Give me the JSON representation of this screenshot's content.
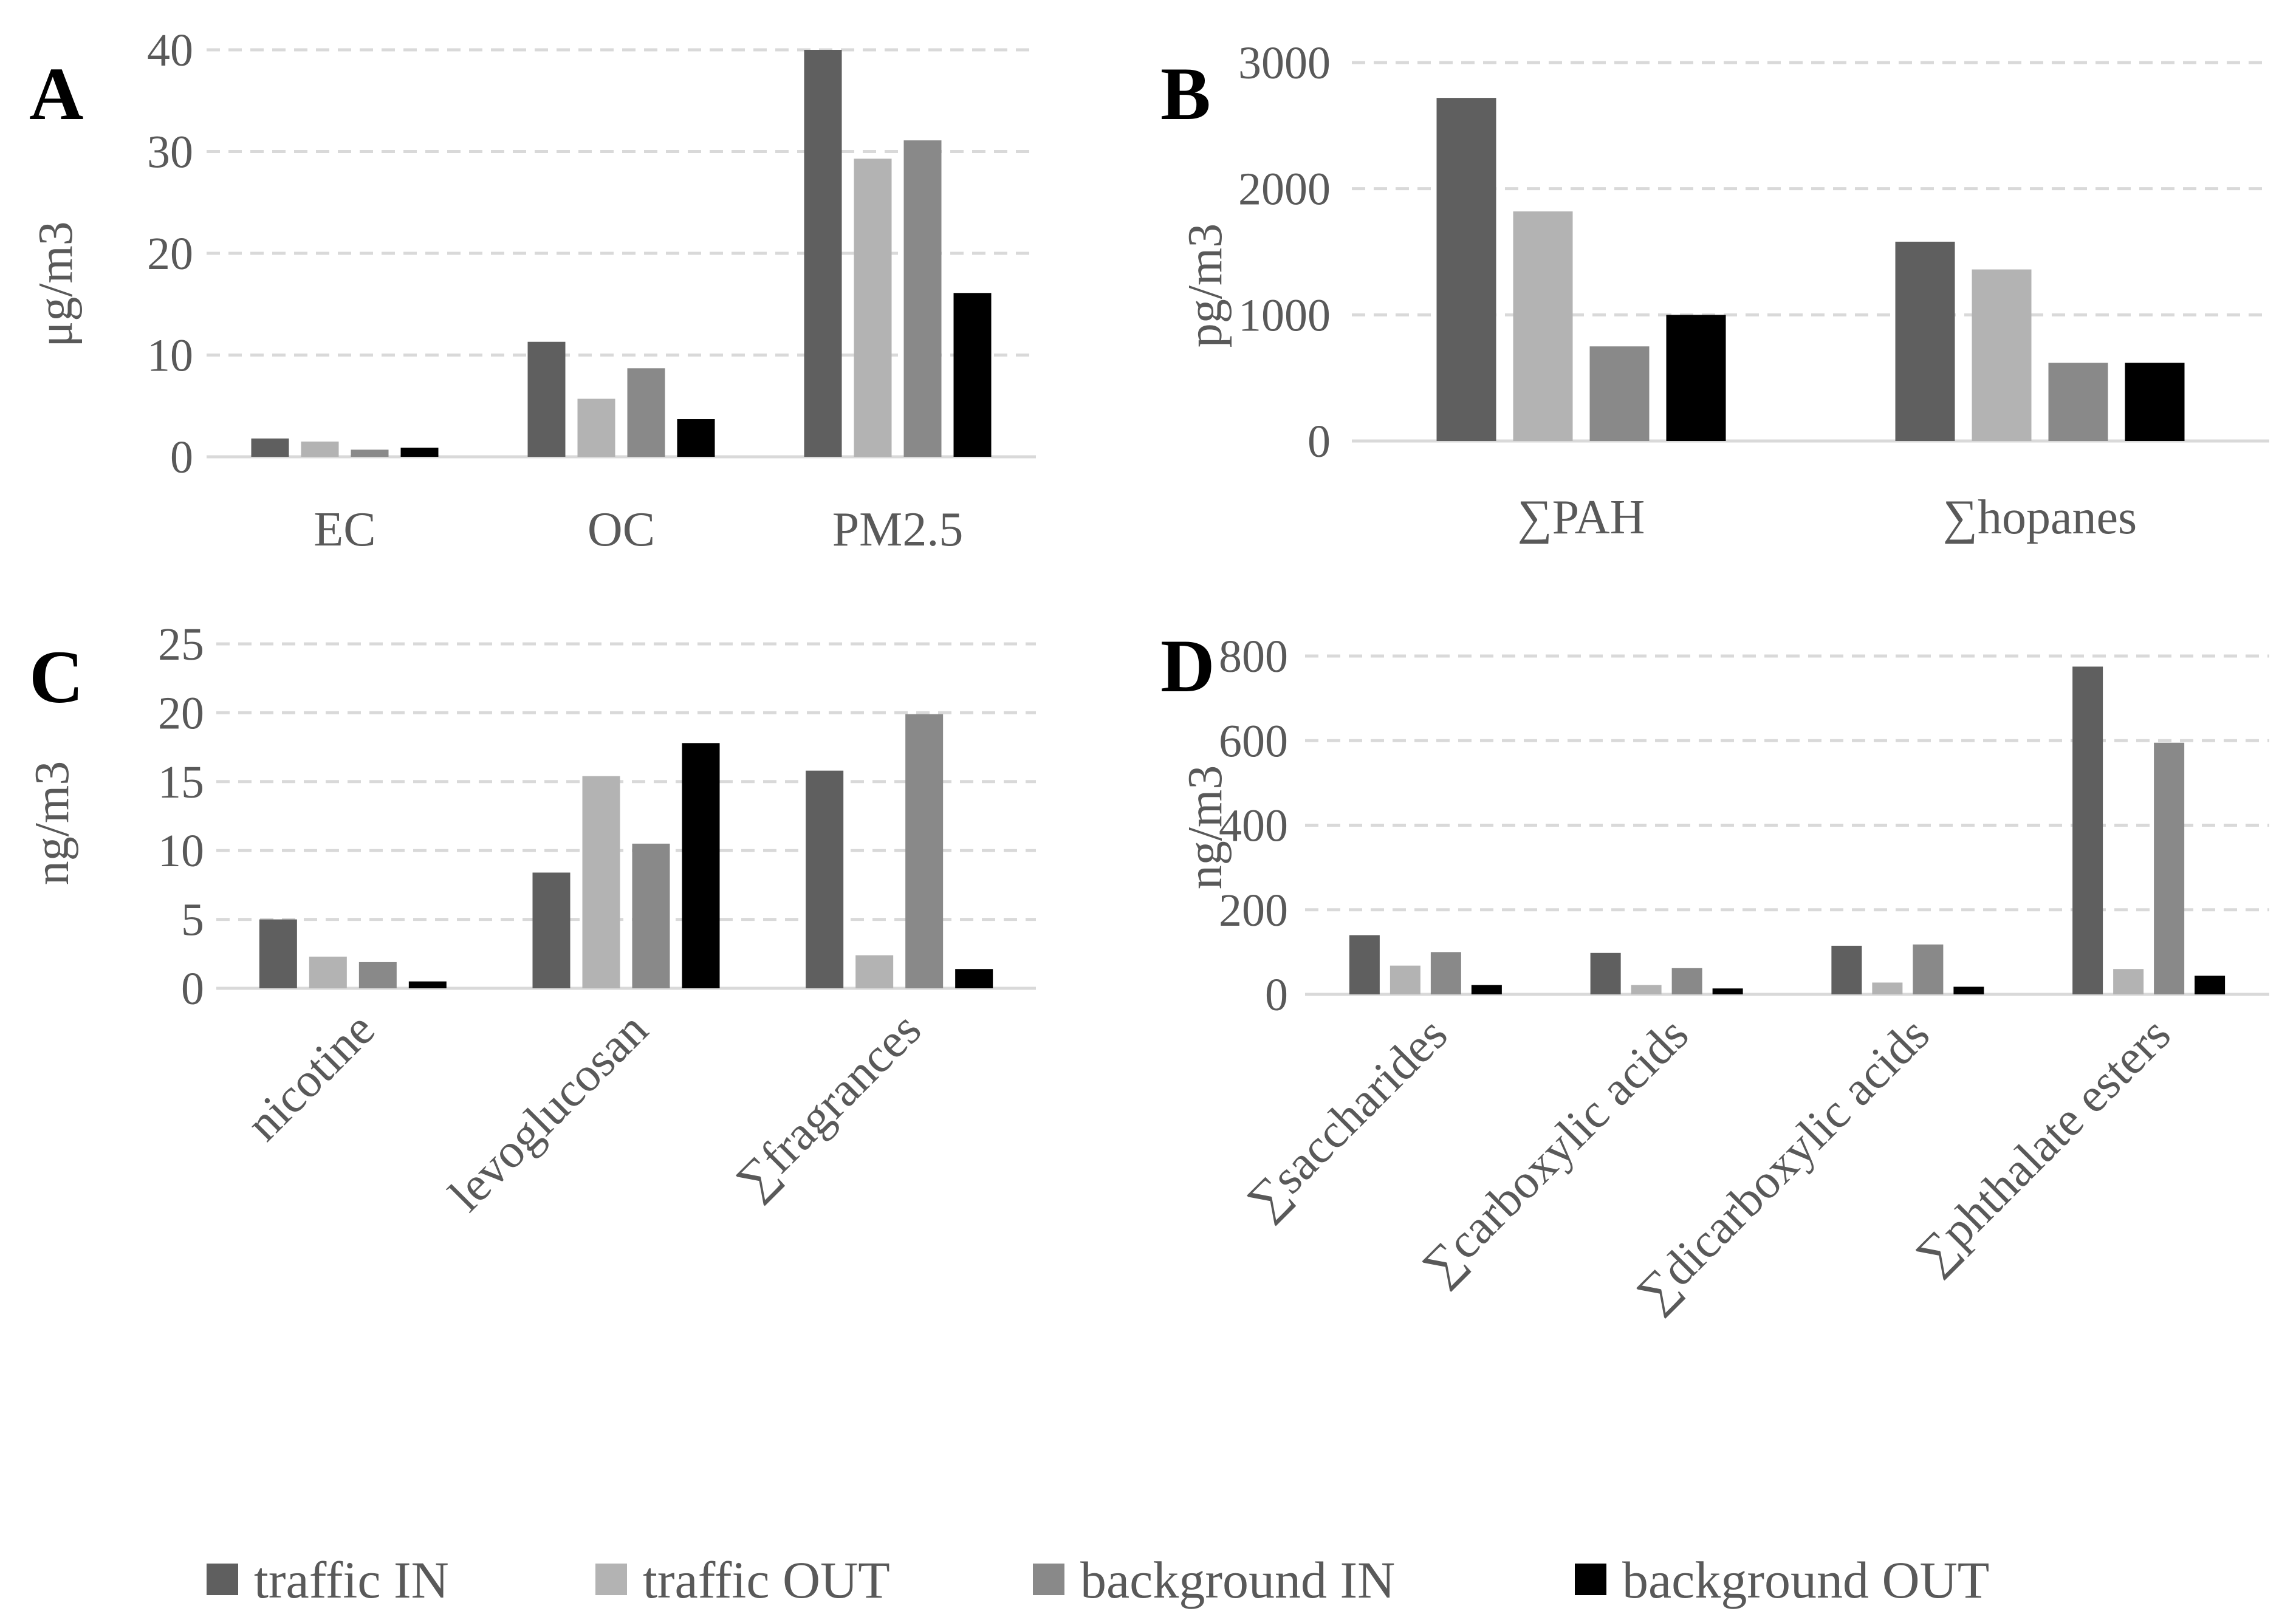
{
  "legend": [
    {
      "label": "traffic IN",
      "color": "#5f5f5f"
    },
    {
      "label": "traffic OUT",
      "color": "#b3b3b3"
    },
    {
      "label": "background IN",
      "color": "#898989"
    },
    {
      "label": "background OUT",
      "color": "#000000"
    }
  ],
  "chart_data": [
    {
      "panel": "A",
      "type": "bar",
      "ylabel": "μg/m3",
      "ylim": [
        0,
        40
      ],
      "yticks": [
        "0",
        "10",
        "20",
        "30",
        "40"
      ],
      "categories": [
        "EC",
        "OC",
        "PM2.5"
      ],
      "category_rotation": 0,
      "grid": true,
      "series": [
        {
          "name": "traffic IN",
          "values": [
            1.8,
            11.3,
            40
          ]
        },
        {
          "name": "traffic OUT",
          "values": [
            1.5,
            5.7,
            29.3
          ]
        },
        {
          "name": "background IN",
          "values": [
            0.7,
            8.7,
            31.1
          ]
        },
        {
          "name": "background OUT",
          "values": [
            0.9,
            3.7,
            16.1
          ]
        }
      ]
    },
    {
      "panel": "B",
      "type": "bar",
      "ylabel": "pg/m3",
      "ylim": [
        0,
        3000
      ],
      "yticks": [
        "0",
        "1000",
        "2000",
        "3000"
      ],
      "categories": [
        "∑PAH",
        "∑hopanes"
      ],
      "category_rotation": 0,
      "grid": true,
      "series": [
        {
          "name": "traffic IN",
          "values": [
            2720,
            1580
          ]
        },
        {
          "name": "traffic OUT",
          "values": [
            1820,
            1360
          ]
        },
        {
          "name": "background IN",
          "values": [
            750,
            620
          ]
        },
        {
          "name": "background OUT",
          "values": [
            1000,
            620
          ]
        }
      ]
    },
    {
      "panel": "C",
      "type": "bar",
      "ylabel": "ng/m3",
      "ylim": [
        0,
        25
      ],
      "yticks": [
        "0",
        "5",
        "10",
        "15",
        "20",
        "25"
      ],
      "categories": [
        "nicotine",
        "levoglucosan",
        "∑fragrances"
      ],
      "category_rotation": -45,
      "grid": true,
      "series": [
        {
          "name": "traffic IN",
          "values": [
            5.0,
            8.4,
            15.8
          ]
        },
        {
          "name": "traffic OUT",
          "values": [
            2.3,
            15.4,
            2.4
          ]
        },
        {
          "name": "background IN",
          "values": [
            1.9,
            10.5,
            19.9
          ]
        },
        {
          "name": "background OUT",
          "values": [
            0.5,
            17.8,
            1.4
          ]
        }
      ]
    },
    {
      "panel": "D",
      "type": "bar",
      "ylabel": "ng/m3",
      "ylim": [
        0,
        800
      ],
      "yticks": [
        "0",
        "200",
        "400",
        "600",
        "800"
      ],
      "categories": [
        "∑saccharides",
        "∑carboxylic acids",
        "∑dicarboxylic acids",
        "∑phthalate esters"
      ],
      "category_rotation": -45,
      "grid": true,
      "series": [
        {
          "name": "traffic IN",
          "values": [
            140,
            98,
            115,
            775
          ]
        },
        {
          "name": "traffic OUT",
          "values": [
            68,
            22,
            28,
            60
          ]
        },
        {
          "name": "background IN",
          "values": [
            100,
            62,
            118,
            595
          ]
        },
        {
          "name": "background OUT",
          "values": [
            22,
            14,
            18,
            44
          ]
        }
      ]
    }
  ]
}
